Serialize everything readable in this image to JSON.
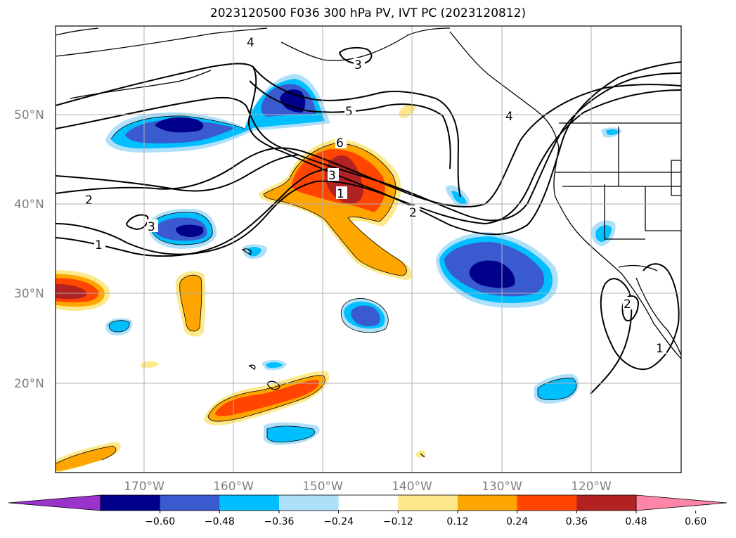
{
  "title": "2023120500 F036 300 hPa PV, IVT PC (2023120812)",
  "lon_ticks": [
    "170°W",
    "160°W",
    "150°W",
    "140°W",
    "130°W",
    "120°W"
  ],
  "lat_ticks": [
    "50°N",
    "40°N",
    "30°N",
    "20°N"
  ],
  "colorbar": {
    "ticks": [
      "−0.60",
      "−0.48",
      "−0.36",
      "−0.24",
      "−0.12",
      "0.12",
      "0.24",
      "0.36",
      "0.48",
      "0.60"
    ],
    "colors": [
      "#9933cc",
      "#00008b",
      "#3a5bcf",
      "#00bfff",
      "#aee0fa",
      "#ffffff",
      "#fde98a",
      "#ffa500",
      "#ff4500",
      "#b22222",
      "#ff85a8"
    ]
  },
  "contour_labels": [
    "4",
    "3",
    "5",
    "6",
    "3",
    "1",
    "2",
    "2",
    "3",
    "1",
    "4",
    "1",
    "2"
  ]
}
